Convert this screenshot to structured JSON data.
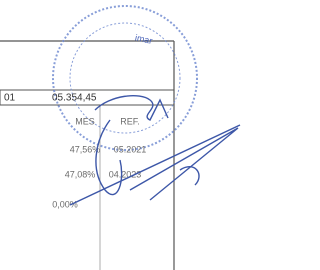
{
  "document": {
    "stamp_text": "imar",
    "row_number": "01",
    "row_amount": "05.354,45",
    "columns": [
      "MES",
      "REF."
    ],
    "rows": [
      [
        "47,56%",
        "05.2021"
      ],
      [
        "47,08%",
        "04.2023"
      ],
      [
        "0,00%",
        null
      ]
    ]
  }
}
